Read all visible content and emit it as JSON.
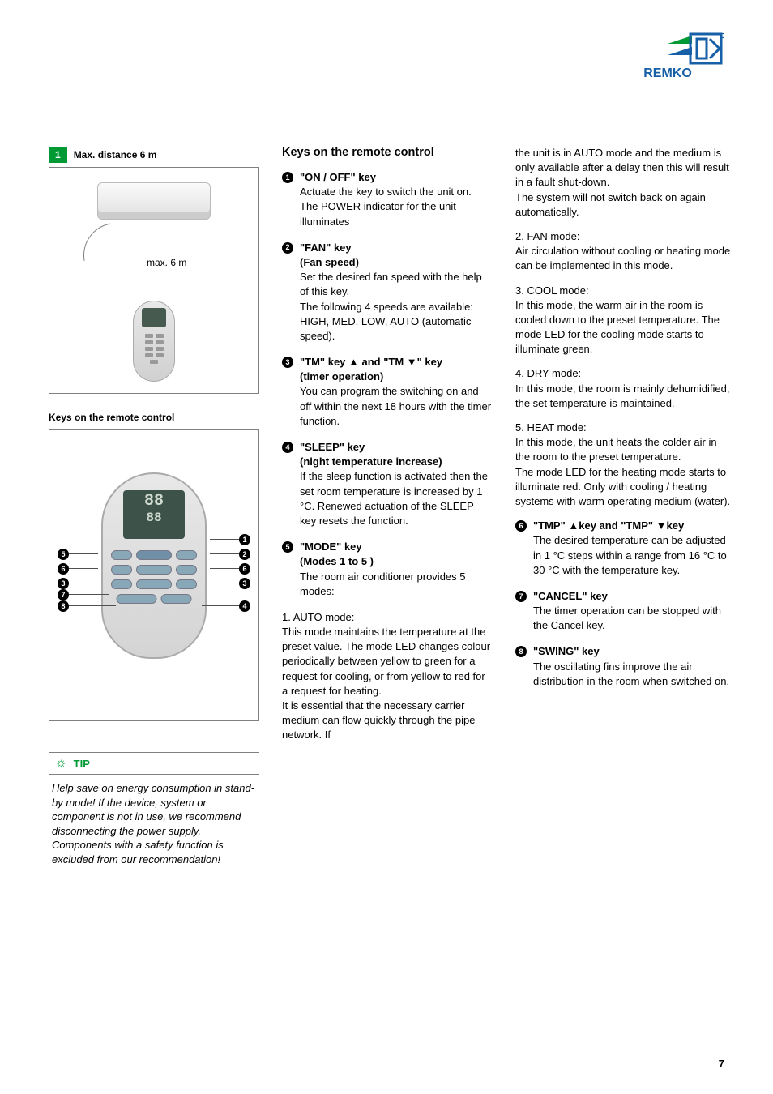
{
  "logo": {
    "brand": "REMKO",
    "stripe_colors": [
      "#009933",
      "#175fa6"
    ]
  },
  "page_number": "7",
  "figure1": {
    "num": "1",
    "title": "Max. distance 6 m",
    "label": "max. 6 m"
  },
  "figure2": {
    "title": "Keys on the remote control",
    "callouts": [
      "1",
      "2",
      "3",
      "4",
      "5",
      "6",
      "6",
      "7",
      "8"
    ],
    "display_top": "88",
    "display_bottom": "88"
  },
  "tip": {
    "label": "TIP",
    "body": "Help save on energy consumption in stand-by mode! If the device, system or component is not in use, we recommend disconnecting the power supply. Components with a safety function is excluded from our recommendation!"
  },
  "col2": {
    "heading": "Keys on the remote control",
    "keys": [
      {
        "num": "1",
        "title": "\"ON / OFF\" key",
        "text": "Actuate the key to switch the unit on.\nThe POWER indicator for the unit illuminates"
      },
      {
        "num": "2",
        "title": "\"FAN\" key",
        "sub": "(Fan speed)",
        "text": "Set the desired fan speed with the help of this key.\nThe following 4 speeds are available:\nHIGH, MED, LOW, AUTO (automatic speed)."
      },
      {
        "num": "3",
        "title": "\"TM\" key ▲ and \"TM ▼\" key",
        "sub": "(timer operation)",
        "text": "You can program the switching on and off within the next 18 hours with the timer function."
      },
      {
        "num": "4",
        "title": "\"SLEEP\" key",
        "sub": "(night temperature increase)",
        "text": "If the sleep function is activated then the set room temperature is increased by 1 °C. Renewed actuation of the SLEEP key resets the function."
      },
      {
        "num": "5",
        "title": "\"MODE\" key",
        "sub": "(Modes 1 to 5 )",
        "text": "The room air conditioner provides 5 modes:"
      }
    ],
    "mode1_title": "1. AUTO mode:",
    "mode1_body": "This mode maintains the temperature at the preset value. The mode LED changes colour periodically between yellow to green for a request for cooling, or from yellow to red for a request for heating.\nIt is essential that the necessary carrier medium can flow quickly through the pipe network. If"
  },
  "col3": {
    "cont": "the unit is in AUTO mode and the medium is only available after a delay then this will result in a fault shut-down.\nThe system will not switch back on again automatically.",
    "modes": [
      {
        "t": "2. FAN mode:",
        "b": "Air circulation without cooling or heating mode can be implemented in this mode."
      },
      {
        "t": "3. COOL mode:",
        "b": "In this mode, the warm air in the room is cooled down to the preset temperature. The mode LED for the cooling mode starts to illuminate green."
      },
      {
        "t": "4. DRY mode:",
        "b": "In this mode, the room is mainly dehumidified, the set temperature is maintained."
      },
      {
        "t": "5. HEAT mode:",
        "b": "In this mode, the unit heats the colder air in the room to the preset temperature.\nThe mode LED for the heating mode starts to illuminate red. Only with cooling / heating systems with warm operating medium (water)."
      }
    ],
    "keys": [
      {
        "num": "6",
        "title": "\"TMP\" ▲key and \"TMP\" ▼key",
        "text": "The desired temperature can be adjusted in 1 °C steps within a range from 16 °C to 30 °C with the temperature key."
      },
      {
        "num": "7",
        "title": "\"CANCEL\" key",
        "text": "The timer operation can be stopped with the Cancel key."
      },
      {
        "num": "8",
        "title": "\"SWING\" key",
        "text": "The oscillating fins improve the air distribution in the room when switched on."
      }
    ]
  }
}
